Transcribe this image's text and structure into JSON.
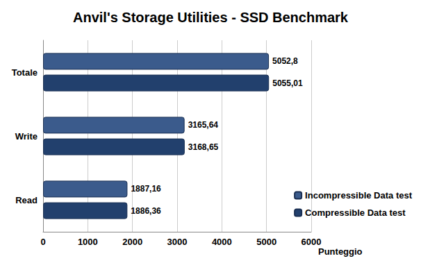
{
  "chart_data": {
    "type": "bar",
    "title": "Anvil's Storage Utilities - SSD Benchmark",
    "orientation": "horizontal",
    "categories": [
      "Totale",
      "Write",
      "Read"
    ],
    "series": [
      {
        "name": "Incompressible Data test",
        "color": "#3b5b8c",
        "values": [
          5052.8,
          3165.64,
          1887.16
        ],
        "value_labels": [
          "5052,8",
          "3165,64",
          "1887,16"
        ]
      },
      {
        "name": "Compressible Data test",
        "color": "#22406d",
        "values": [
          5055.01,
          3168.65,
          1886.36
        ],
        "value_labels": [
          "5055,01",
          "3168,65",
          "1886,36"
        ]
      }
    ],
    "xlabel": "Punteggio",
    "xlim": [
      0,
      6000
    ],
    "xticks": [
      0,
      1000,
      2000,
      3000,
      4000,
      5000,
      6000
    ],
    "grid": true,
    "legend": "right",
    "data_labels": true
  }
}
